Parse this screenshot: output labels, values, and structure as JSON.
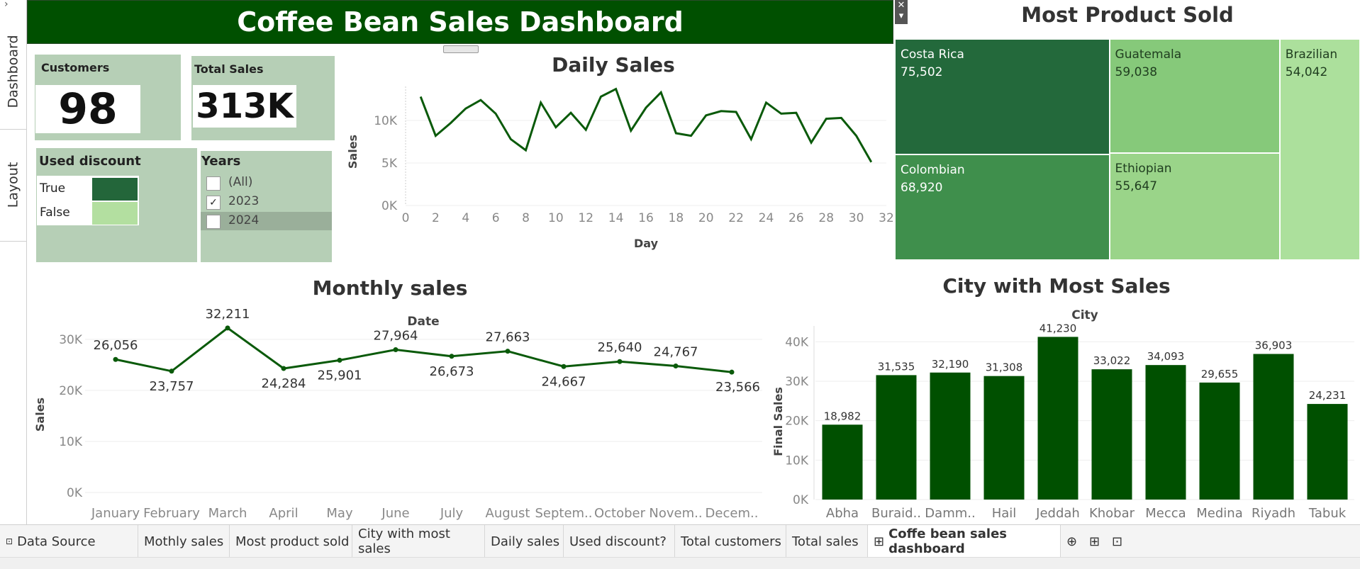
{
  "app": {
    "dashboard_title": "Coffee Bean Sales Dashboard"
  },
  "rail": {
    "tab_dashboard": "Dashboard",
    "tab_layout": "Layout"
  },
  "kpis": {
    "customers_label": "Customers",
    "customers_value": "98",
    "sales_label": "Total Sales",
    "sales_value": "313K"
  },
  "discount": {
    "title": "Used discount",
    "items": [
      {
        "label": "True",
        "color": "#23663a"
      },
      {
        "label": "False",
        "color": "#b3dfa0"
      }
    ]
  },
  "years": {
    "title": "Years",
    "options": [
      {
        "label": "(All)",
        "checked": false
      },
      {
        "label": "2023",
        "checked": true
      },
      {
        "label": "2024",
        "checked": false
      }
    ]
  },
  "colors": {
    "accent": "#005000",
    "line": "#0a5a0a",
    "kpi_bg": "#b6cfb6"
  },
  "daily_chart": {
    "title": "Daily Sales",
    "chart_data": {
      "type": "line",
      "xlabel": "Day",
      "ylabel": "Sales",
      "xlim": [
        0,
        32
      ],
      "ylim": [
        0,
        14000
      ],
      "x_ticks": [
        "0",
        "2",
        "4",
        "6",
        "8",
        "10",
        "12",
        "14",
        "16",
        "18",
        "20",
        "22",
        "24",
        "26",
        "28",
        "30",
        "32"
      ],
      "y_ticks": [
        "0K",
        "5K",
        "10K"
      ],
      "x": [
        1,
        2,
        3,
        4,
        5,
        6,
        7,
        8,
        9,
        10,
        11,
        12,
        13,
        14,
        15,
        16,
        17,
        18,
        19,
        20,
        21,
        22,
        23,
        24,
        25,
        26,
        27,
        28,
        29,
        30,
        31
      ],
      "values": [
        12800,
        8200,
        9700,
        11400,
        12400,
        10800,
        7800,
        6500,
        12100,
        9200,
        10900,
        8900,
        12800,
        13700,
        8800,
        11500,
        13300,
        8500,
        8200,
        10600,
        11100,
        11000,
        7800,
        12100,
        10800,
        10900,
        7400,
        10200,
        10300,
        8200,
        5100
      ]
    }
  },
  "monthly_chart": {
    "title": "Monthly sales",
    "chart_data": {
      "type": "line",
      "xlabel": "Date",
      "ylabel": "Sales",
      "ylim": [
        0,
        34000
      ],
      "y_ticks": [
        "0K",
        "10K",
        "20K",
        "30K"
      ],
      "categories": [
        "January",
        "February",
        "March",
        "April",
        "May",
        "June",
        "July",
        "August",
        "Septem..",
        "October",
        "Novem..",
        "Decem.."
      ],
      "values": [
        26056,
        23757,
        32211,
        24284,
        25901,
        27964,
        26673,
        27663,
        24667,
        25640,
        24767,
        23566
      ],
      "data_labels": [
        "26,056",
        "23,757",
        "32,211",
        "24,284",
        "25,901",
        "27,964",
        "26,673",
        "27,663",
        "24,667",
        "25,640",
        "24,767",
        "23,566"
      ]
    }
  },
  "city_chart": {
    "title": "City with Most Sales",
    "chart_data": {
      "type": "bar",
      "xlabel": "City",
      "ylabel": "Final Sales",
      "ylim": [
        0,
        44000
      ],
      "y_ticks": [
        "0K",
        "10K",
        "20K",
        "30K",
        "40K"
      ],
      "categories": [
        "Abha",
        "Buraid..",
        "Damm..",
        "Hail",
        "Jeddah",
        "Khobar",
        "Mecca",
        "Medina",
        "Riyadh",
        "Tabuk"
      ],
      "values": [
        18982,
        31535,
        32190,
        31308,
        41230,
        33022,
        34093,
        29655,
        36903,
        24231
      ],
      "data_labels": [
        "18,982",
        "31,535",
        "32,190",
        "31,308",
        "41,230",
        "33,022",
        "34,093",
        "29,655",
        "36,903",
        "24,231"
      ]
    }
  },
  "treemap": {
    "title": "Most Product Sold",
    "chart_data": {
      "type": "treemap",
      "items": [
        {
          "name": "Costa Rica",
          "value": 75502,
          "label": "75,502",
          "color": "#23693b"
        },
        {
          "name": "Colombian",
          "value": 68920,
          "label": "68,920",
          "color": "#3f8f4c"
        },
        {
          "name": "Guatemala",
          "value": 59038,
          "label": "59,038",
          "color": "#86c97a"
        },
        {
          "name": "Ethiopian",
          "value": 55647,
          "label": "55,647",
          "color": "#9ad489"
        },
        {
          "name": "Brazilian",
          "value": 54042,
          "label": "54,042",
          "color": "#ace09c"
        }
      ]
    }
  },
  "tabs": [
    "Data Source",
    "Mothly sales",
    "Most product sold",
    "City with most sales",
    "Daily sales",
    "Used discount?",
    "Total customers",
    "Total sales",
    "Coffe bean sales dashboard"
  ]
}
